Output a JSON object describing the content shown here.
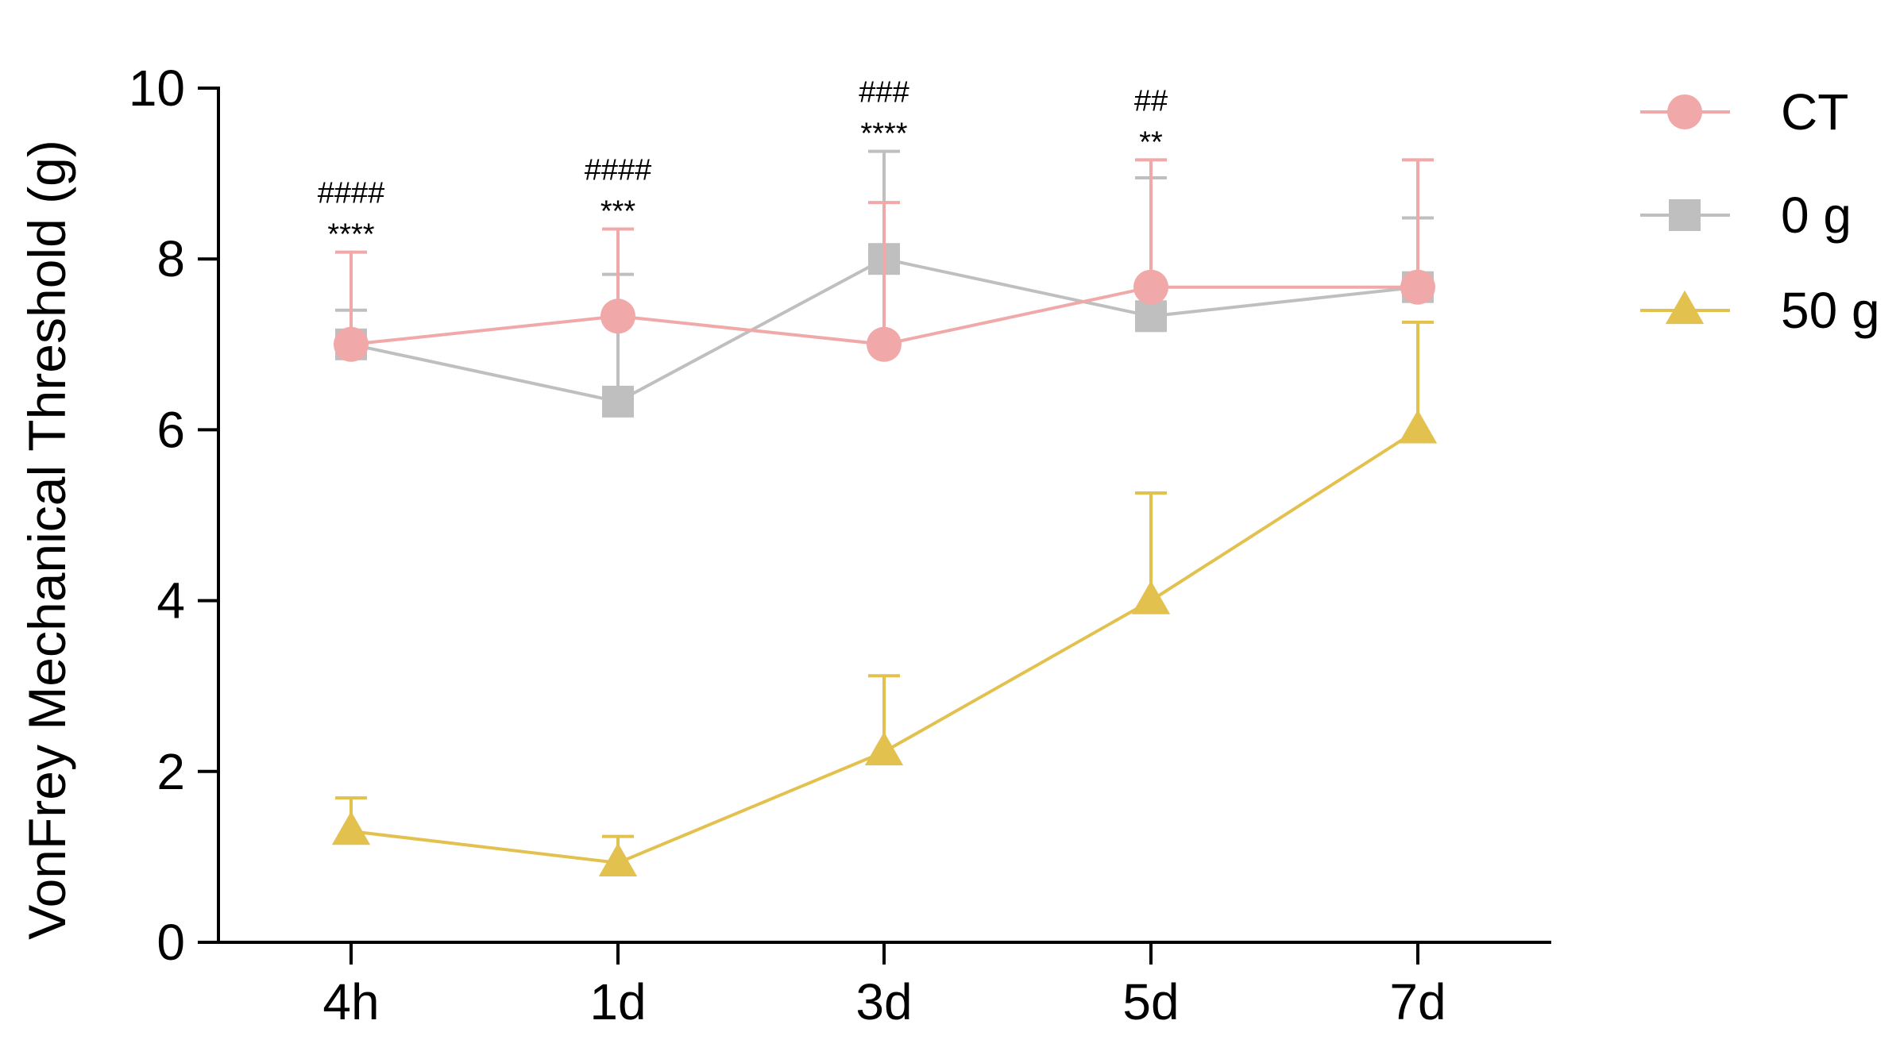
{
  "chart_data": {
    "type": "line",
    "title": "",
    "xlabel": "",
    "ylabel": "VonFrey Mechanical Threshold (g)",
    "categories": [
      "4h",
      "1d",
      "3d",
      "5d",
      "7d"
    ],
    "ylim": [
      0,
      10
    ],
    "yticks": [
      0,
      2,
      4,
      6,
      8,
      10
    ],
    "grid": false,
    "legend_position": "top-right",
    "series": [
      {
        "name": "CT",
        "marker": "circle",
        "color": "#F0A8A8",
        "values": [
          7.0,
          7.33,
          7.0,
          7.67,
          7.67
        ],
        "error_upper": [
          8.08,
          8.35,
          8.66,
          9.16,
          9.16
        ]
      },
      {
        "name": "0 g",
        "marker": "square",
        "color": "#BFBFBF",
        "values": [
          7.0,
          6.33,
          8.0,
          7.33,
          7.67
        ],
        "error_upper": [
          7.4,
          7.82,
          9.26,
          8.95,
          8.48
        ]
      },
      {
        "name": "50 g",
        "marker": "triangle",
        "color": "#E3C14F",
        "values": [
          1.3,
          0.93,
          2.23,
          4.0,
          6.0
        ],
        "error_upper": [
          1.69,
          1.24,
          3.12,
          5.26,
          7.26
        ]
      }
    ],
    "annotations": [
      {
        "category": "4h",
        "hash": "####",
        "stars": "****"
      },
      {
        "category": "1d",
        "hash": "####",
        "stars": "***"
      },
      {
        "category": "3d",
        "hash": "###",
        "stars": "****"
      },
      {
        "category": "5d",
        "hash": "##",
        "stars": "**"
      }
    ]
  }
}
